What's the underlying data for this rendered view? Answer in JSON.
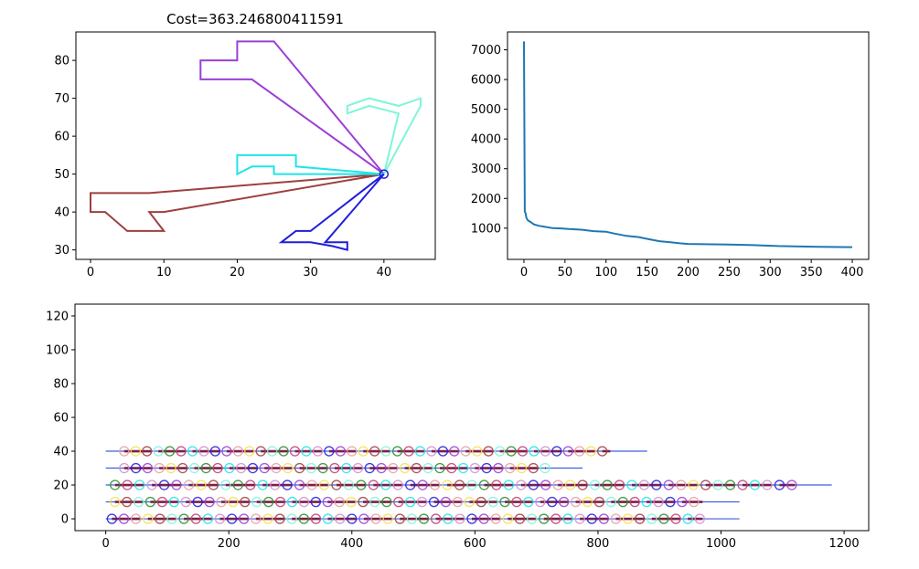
{
  "chart_data": [
    {
      "type": "line",
      "title": "Cost=363.246800411591",
      "xlim": [
        -2,
        47
      ],
      "ylim": [
        27.5,
        87.5
      ],
      "xticks": [
        "0",
        "10",
        "20",
        "30",
        "40"
      ],
      "yticks": [
        "30",
        "40",
        "50",
        "60",
        "70",
        "80"
      ],
      "xtick_values": [
        0,
        10,
        20,
        30,
        40
      ],
      "ytick_values": [
        30,
        40,
        50,
        60,
        70,
        80
      ],
      "depot": {
        "x": 40,
        "y": 50
      },
      "routes": [
        {
          "color": "#9f3f3f",
          "points": [
            [
              40,
              50
            ],
            [
              8,
              45
            ],
            [
              0,
              45
            ],
            [
              0,
              40
            ],
            [
              2,
              40
            ],
            [
              5,
              35
            ],
            [
              10,
              35
            ],
            [
              8,
              40
            ],
            [
              10,
              40
            ],
            [
              40,
              50
            ]
          ]
        },
        {
          "color": "#9b3fd6",
          "points": [
            [
              40,
              50
            ],
            [
              22,
              75
            ],
            [
              15,
              75
            ],
            [
              15,
              80
            ],
            [
              20,
              80
            ],
            [
              20,
              85
            ],
            [
              25,
              85
            ],
            [
              40,
              50
            ]
          ]
        },
        {
          "color": "#7ff5d8",
          "points": [
            [
              40,
              50
            ],
            [
              45,
              68
            ],
            [
              45,
              70
            ],
            [
              42,
              68
            ],
            [
              38,
              70
            ],
            [
              35,
              68
            ],
            [
              35,
              66
            ],
            [
              38,
              68
            ],
            [
              42,
              66
            ],
            [
              40,
              50
            ]
          ]
        },
        {
          "color": "#1fe5e8",
          "points": [
            [
              40,
              50
            ],
            [
              28,
              52
            ],
            [
              28,
              55
            ],
            [
              20,
              55
            ],
            [
              20,
              50
            ],
            [
              22,
              52
            ],
            [
              25,
              52
            ],
            [
              25,
              50
            ],
            [
              40,
              50
            ]
          ]
        },
        {
          "color": "#1f1fdb",
          "points": [
            [
              40,
              50
            ],
            [
              30,
              35
            ],
            [
              28,
              35
            ],
            [
              26,
              32
            ],
            [
              30,
              32
            ],
            [
              33,
              31
            ],
            [
              35,
              30
            ],
            [
              35,
              32
            ],
            [
              32,
              32
            ],
            [
              40,
              50
            ]
          ]
        }
      ]
    },
    {
      "type": "line",
      "title": "",
      "xlim": [
        -20,
        420
      ],
      "ylim": [
        -50,
        7600
      ],
      "xticks": [
        "0",
        "50",
        "100",
        "150",
        "200",
        "250",
        "300",
        "350",
        "400"
      ],
      "yticks": [
        "1000",
        "2000",
        "3000",
        "4000",
        "5000",
        "6000",
        "7000"
      ],
      "xtick_values": [
        0,
        50,
        100,
        150,
        200,
        250,
        300,
        350,
        400
      ],
      "ytick_values": [
        1000,
        2000,
        3000,
        4000,
        5000,
        6000,
        7000
      ],
      "color": "#1f77b4",
      "x": [
        0,
        1,
        2,
        3,
        5,
        8,
        12,
        18,
        25,
        35,
        45,
        55,
        70,
        85,
        100,
        110,
        125,
        140,
        150,
        165,
        180,
        190,
        200,
        220,
        250,
        280,
        290,
        310,
        330,
        360,
        400
      ],
      "y": [
        7280,
        1560,
        1500,
        1350,
        1260,
        1210,
        1130,
        1080,
        1050,
        1000,
        990,
        970,
        950,
        900,
        880,
        820,
        740,
        700,
        640,
        560,
        520,
        490,
        470,
        460,
        450,
        430,
        420,
        400,
        390,
        375,
        363
      ]
    },
    {
      "type": "scatter",
      "title": "",
      "xlim": [
        -50,
        1240
      ],
      "ylim": [
        -7,
        127
      ],
      "xticks": [
        "0",
        "200",
        "400",
        "600",
        "800",
        "1000",
        "1200"
      ],
      "yticks": [
        "0",
        "20",
        "40",
        "60",
        "80",
        "100",
        "120"
      ],
      "xtick_values": [
        0,
        200,
        400,
        600,
        800,
        1000,
        1200
      ],
      "ytick_values": [
        0,
        20,
        40,
        60,
        80,
        100,
        120
      ],
      "rows": [
        {
          "y": 0,
          "x_end": 1030,
          "start": 10,
          "step": 19.5,
          "count": 50
        },
        {
          "y": 10,
          "x_end": 1030,
          "start": 15,
          "step": 19.2,
          "count": 50
        },
        {
          "y": 20,
          "x_end": 1180,
          "start": 15,
          "step": 20.0,
          "count": 58
        },
        {
          "y": 30,
          "x_end": 775,
          "start": 30,
          "step": 19.0,
          "count": 38
        },
        {
          "y": 40,
          "x_end": 880,
          "start": 30,
          "step": 18.5,
          "count": 45
        }
      ]
    }
  ]
}
